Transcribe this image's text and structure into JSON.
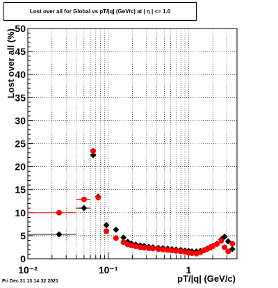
{
  "chart_data": {
    "type": "scatter",
    "title": "Lost over all for Global vs pT/|q| (GeV/c) at |  η  | <= 1.0",
    "xlabel": "pT/|q| (GeV/c)",
    "ylabel": "Lost over all (%)",
    "xscale": "log",
    "xlim": [
      0.01,
      4.0
    ],
    "ylim": [
      0,
      50
    ],
    "grid": true,
    "x_tick_labels": [
      "10⁻²",
      "10⁻¹",
      "1"
    ],
    "y_tick_labels": [
      "0",
      "5",
      "10",
      "15",
      "20",
      "25",
      "30",
      "35",
      "40",
      "45",
      "50"
    ],
    "series": [
      {
        "color": "#000000",
        "marker": "diamond",
        "points": [
          {
            "x": 0.0245,
            "y": 5.3,
            "xlo": 0.01,
            "xhi": 0.04
          },
          {
            "x": 0.05,
            "y": 11.0,
            "xlo": 0.04,
            "xhi": 0.06
          },
          {
            "x": 0.065,
            "y": 22.5,
            "xlo": 0.06,
            "xhi": 0.07
          },
          {
            "x": 0.075,
            "y": 13.5,
            "xlo": 0.07,
            "xhi": 0.08
          },
          {
            "x": 0.095,
            "y": 7.3
          },
          {
            "x": 0.125,
            "y": 6.3
          },
          {
            "x": 0.155,
            "y": 4.6
          },
          {
            "x": 0.175,
            "y": 3.7
          },
          {
            "x": 0.195,
            "y": 3.3
          },
          {
            "x": 0.22,
            "y": 3.1
          },
          {
            "x": 0.25,
            "y": 2.9
          },
          {
            "x": 0.28,
            "y": 2.8
          },
          {
            "x": 0.32,
            "y": 2.6
          },
          {
            "x": 0.36,
            "y": 2.5
          },
          {
            "x": 0.42,
            "y": 2.4
          },
          {
            "x": 0.48,
            "y": 2.3
          },
          {
            "x": 0.55,
            "y": 2.2
          },
          {
            "x": 0.62,
            "y": 2.1
          },
          {
            "x": 0.7,
            "y": 2.0
          },
          {
            "x": 0.8,
            "y": 1.9
          },
          {
            "x": 0.9,
            "y": 1.8
          },
          {
            "x": 1.0,
            "y": 1.7
          },
          {
            "x": 1.1,
            "y": 1.6
          },
          {
            "x": 1.25,
            "y": 1.6
          },
          {
            "x": 1.4,
            "y": 1.7
          },
          {
            "x": 1.55,
            "y": 1.9
          },
          {
            "x": 1.7,
            "y": 2.2
          },
          {
            "x": 1.85,
            "y": 2.5
          },
          {
            "x": 2.0,
            "y": 2.8
          },
          {
            "x": 2.25,
            "y": 3.3
          },
          {
            "x": 2.55,
            "y": 4.2
          },
          {
            "x": 2.8,
            "y": 4.8
          },
          {
            "x": 3.1,
            "y": 3.8
          },
          {
            "x": 3.5,
            "y": 2.1
          }
        ]
      },
      {
        "color": "#ff0000",
        "marker": "circle",
        "points": [
          {
            "x": 0.0245,
            "y": 10.0,
            "xlo": 0.01,
            "xhi": 0.04
          },
          {
            "x": 0.05,
            "y": 12.9,
            "xlo": 0.04,
            "xhi": 0.06
          },
          {
            "x": 0.065,
            "y": 23.4,
            "xlo": 0.06,
            "xhi": 0.07
          },
          {
            "x": 0.075,
            "y": 13.3,
            "xlo": 0.07,
            "xhi": 0.08
          },
          {
            "x": 0.095,
            "y": 6.0
          },
          {
            "x": 0.125,
            "y": 4.5
          },
          {
            "x": 0.155,
            "y": 3.6
          },
          {
            "x": 0.175,
            "y": 3.1
          },
          {
            "x": 0.195,
            "y": 2.9
          },
          {
            "x": 0.22,
            "y": 2.7
          },
          {
            "x": 0.25,
            "y": 2.5
          },
          {
            "x": 0.28,
            "y": 2.4
          },
          {
            "x": 0.32,
            "y": 2.3
          },
          {
            "x": 0.36,
            "y": 2.2
          },
          {
            "x": 0.42,
            "y": 2.1
          },
          {
            "x": 0.48,
            "y": 2.0
          },
          {
            "x": 0.55,
            "y": 1.9
          },
          {
            "x": 0.62,
            "y": 1.8
          },
          {
            "x": 0.7,
            "y": 1.7
          },
          {
            "x": 0.8,
            "y": 1.6
          },
          {
            "x": 0.9,
            "y": 1.5
          },
          {
            "x": 1.0,
            "y": 1.3
          },
          {
            "x": 1.1,
            "y": 1.2
          },
          {
            "x": 1.25,
            "y": 1.1
          },
          {
            "x": 1.4,
            "y": 1.4
          },
          {
            "x": 1.55,
            "y": 1.8
          },
          {
            "x": 1.7,
            "y": 2.1
          },
          {
            "x": 1.85,
            "y": 2.4
          },
          {
            "x": 2.0,
            "y": 2.7
          },
          {
            "x": 2.25,
            "y": 3.2
          },
          {
            "x": 2.55,
            "y": 3.9
          },
          {
            "x": 2.8,
            "y": 2.5
          },
          {
            "x": 3.1,
            "y": 1.6
          },
          {
            "x": 3.5,
            "y": 3.3
          }
        ]
      }
    ]
  },
  "footer": {
    "timestamp": "Fri Dec 31 13:14:32 2021"
  }
}
